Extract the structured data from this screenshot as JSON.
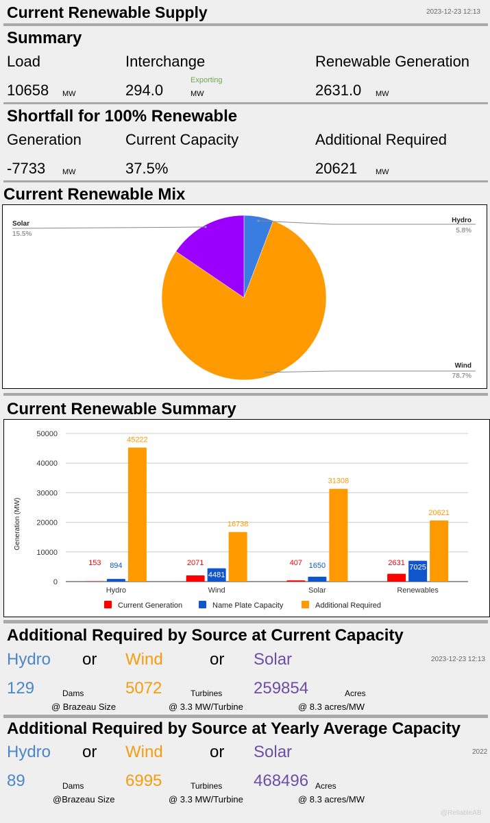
{
  "header": {
    "title": "Current Renewable Supply",
    "timestamp": "2023-12-23 12:13"
  },
  "summary": {
    "title": "Summary",
    "load": {
      "label": "Load",
      "value": "10658",
      "unit": "MW"
    },
    "interchange": {
      "label": "Interchange",
      "value": "294.0",
      "status": "Exporting",
      "unit": "MW"
    },
    "renewable": {
      "label": "Renewable Generation",
      "value": "2631.0",
      "unit": "MW"
    }
  },
  "shortfall": {
    "title": "Shortfall for 100% Renewable",
    "generation": {
      "label": "Generation",
      "value": "-7733",
      "unit": "MW"
    },
    "capacity": {
      "label": "Current Capacity",
      "value": "37.5%"
    },
    "additional": {
      "label": "Additional Required",
      "value": "20621",
      "unit": "MW"
    }
  },
  "mix": {
    "title": "Current Renewable Mix",
    "slices": [
      {
        "name": "Hydro",
        "pct": "5.8%",
        "value": 5.8,
        "color": "#3a7de0"
      },
      {
        "name": "Wind",
        "pct": "78.7%",
        "value": 78.7,
        "color": "#ff9a00"
      },
      {
        "name": "Solar",
        "pct": "15.5%",
        "value": 15.5,
        "color": "#9b00ff"
      }
    ]
  },
  "renewable_summary": {
    "title": "Current Renewable Summary"
  },
  "chart_data": {
    "type": "bar",
    "categories": [
      "Hydro",
      "Wind",
      "Solar",
      "Renewables"
    ],
    "series": [
      {
        "name": "Current Generation",
        "color": "#ff0000",
        "values": [
          153,
          2071,
          407,
          2631
        ]
      },
      {
        "name": "Name Plate Capacity",
        "color": "#1155cc",
        "values": [
          894,
          4481,
          1650,
          7025
        ]
      },
      {
        "name": "Additional Required",
        "color": "#ff9900",
        "values": [
          45222,
          16738,
          31308,
          20621
        ]
      }
    ],
    "ylabel": "Generation (MW)",
    "ylim": [
      0,
      50000
    ],
    "yticks": [
      "0",
      "10000",
      "20000",
      "30000",
      "40000",
      "50000"
    ],
    "legend": "bottom",
    "grid": true
  },
  "current_capacity": {
    "title": "Additional Required by Source at Current Capacity",
    "timestamp": "2023-12-23 12:13",
    "or": "or",
    "hydro": {
      "name": "Hydro",
      "value": "129",
      "unit": "Dams",
      "note": "@ Brazeau Size"
    },
    "wind": {
      "name": "Wind",
      "value": "5072",
      "unit": "Turbines",
      "note": "@ 3.3 MW/Turbine"
    },
    "solar": {
      "name": "Solar",
      "value": "259854",
      "unit": "Acres",
      "note": "@ 8.3 acres/MW"
    }
  },
  "yearly_capacity": {
    "title": "Additional Required by Source at Yearly Average Capacity",
    "year": "2022",
    "or": "or",
    "hydro": {
      "name": "Hydro",
      "value": "89",
      "unit": "Dams",
      "note": "@Brazeau Size"
    },
    "wind": {
      "name": "Wind",
      "value": "6995",
      "unit": "Turbines",
      "note": "@ 3.3 MW/Turbine"
    },
    "solar": {
      "name": "Solar",
      "value": "468496",
      "unit": "Acres",
      "note": "@ 8.3 acres/MW"
    }
  },
  "watermark": "@ReliableAB"
}
